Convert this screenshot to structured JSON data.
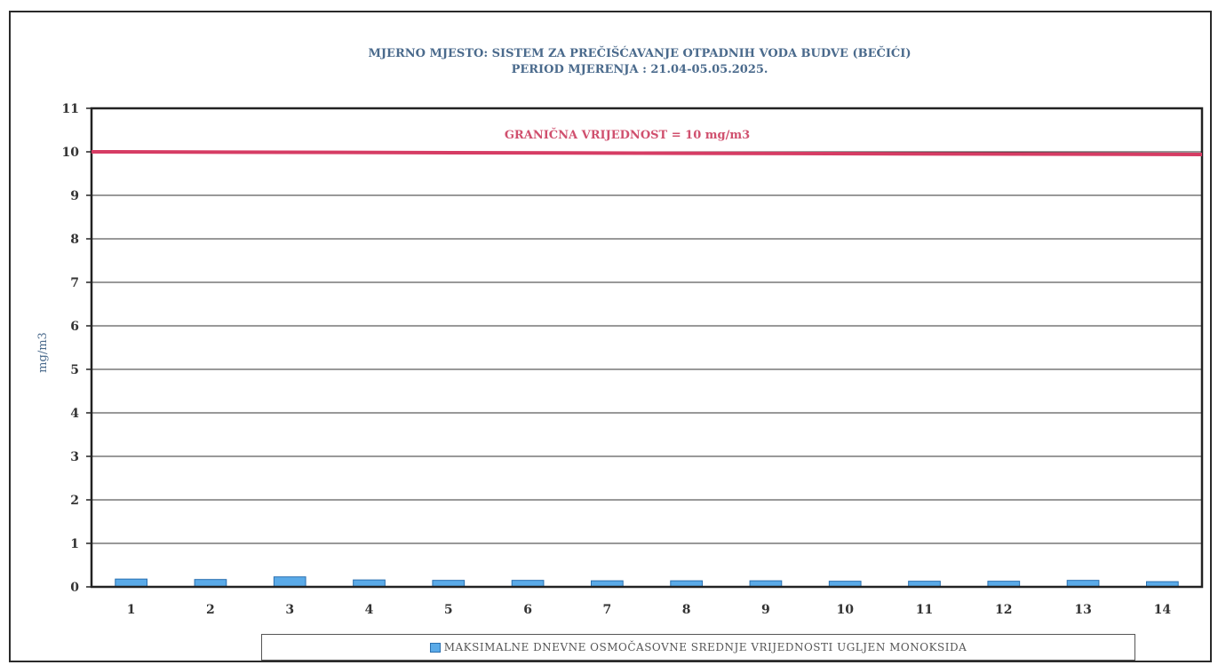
{
  "chart_data": {
    "type": "bar",
    "title": "MJERNO MJESTO: SISTEM ZA PREČIŠĆAVANJE  OTPADNIH VODA BUDVE (BEČIĆI)",
    "subtitle": "PERIOD MJERENJA : 21.04-05.05.2025.",
    "xlabel": "",
    "ylabel": "mg/m3",
    "ylim": [
      0,
      11
    ],
    "yticks": [
      0,
      1,
      2,
      3,
      4,
      5,
      6,
      7,
      8,
      9,
      10,
      11
    ],
    "grid": true,
    "categories": [
      "1",
      "2",
      "3",
      "4",
      "5",
      "6",
      "7",
      "8",
      "9",
      "10",
      "11",
      "12",
      "13",
      "14"
    ],
    "series": [
      {
        "name": "MAKSIMALNE DNEVNE OSMOČASOVNE SREDNJE VRIJEDNOSTI UGLJEN MONOKSIDA",
        "color": "#5aaae8",
        "values": [
          0.18,
          0.17,
          0.23,
          0.16,
          0.15,
          0.15,
          0.14,
          0.14,
          0.14,
          0.13,
          0.13,
          0.13,
          0.15,
          0.12
        ]
      }
    ],
    "reference_line": {
      "value": 10,
      "label": "GRANIČNA VRIJEDNOST = 10 mg/m3",
      "color": "#d63c64"
    },
    "legend_position": "bottom"
  }
}
